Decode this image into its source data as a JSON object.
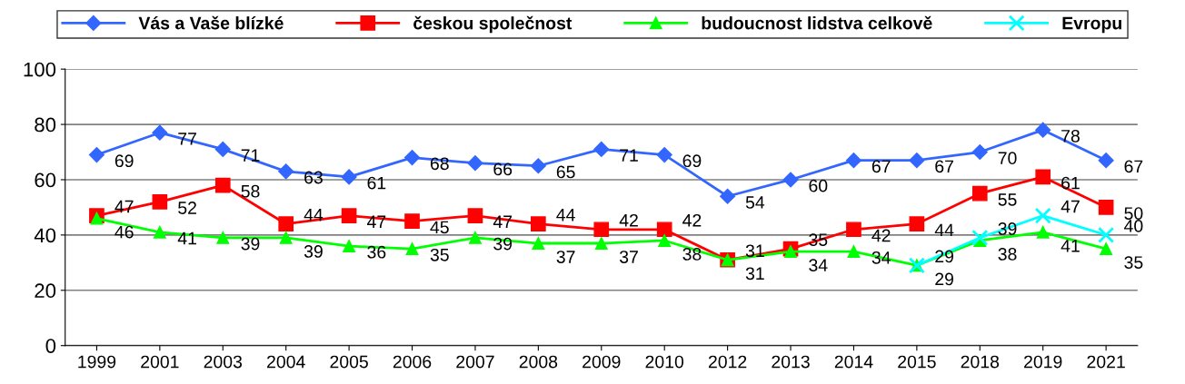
{
  "chart_data": {
    "type": "line",
    "categories": [
      "1999",
      "2001",
      "2003",
      "2004",
      "2005",
      "2006",
      "2007",
      "2008",
      "2009",
      "2010",
      "2012",
      "2013",
      "2014",
      "2015",
      "2018",
      "2019",
      "2021"
    ],
    "series": [
      {
        "name": "Vás a Vaše blízké",
        "color": "#3366ff",
        "marker": "diamond",
        "values": [
          69,
          77,
          71,
          63,
          61,
          68,
          66,
          65,
          71,
          69,
          54,
          60,
          67,
          67,
          70,
          78,
          67
        ]
      },
      {
        "name": "českou společnost",
        "color": "#ff0000",
        "marker": "square",
        "values": [
          47,
          52,
          58,
          44,
          47,
          45,
          47,
          44,
          42,
          42,
          31,
          35,
          42,
          44,
          55,
          61,
          50
        ]
      },
      {
        "name": "budoucnost lidstva celkově",
        "color": "#00ff00",
        "marker": "triangle",
        "values": [
          46,
          41,
          39,
          39,
          36,
          35,
          39,
          37,
          37,
          38,
          31,
          34,
          34,
          29,
          38,
          41,
          35
        ]
      },
      {
        "name": "Evropu",
        "color": "#00ffff",
        "marker": "cross",
        "values": [
          null,
          null,
          null,
          null,
          null,
          null,
          null,
          null,
          null,
          null,
          null,
          null,
          null,
          29,
          39,
          47,
          40
        ]
      }
    ],
    "ylim": [
      0,
      100
    ],
    "yticks": [
      0,
      20,
      40,
      60,
      80,
      100
    ],
    "grid": "y",
    "legend": "top",
    "data_labels": true,
    "line_style": "solid"
  }
}
